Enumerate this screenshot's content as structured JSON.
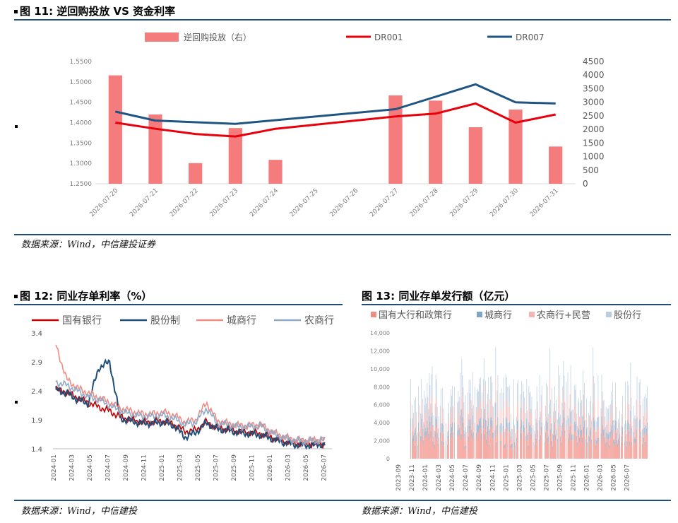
{
  "fig11": {
    "title": "图 11: 逆回购投放 VS 资金利率",
    "source": "数据来源：Wind，中信建投证券"
  },
  "fig12": {
    "title": "图 12: 同业存单利率（%）",
    "source": "数据来源：Wind，中信建投"
  },
  "fig13": {
    "title": "图 13: 同业存单发行额（亿元）",
    "source": "数据来源：Wind，中信建投"
  },
  "chart_data": [
    {
      "id": "fig11",
      "type": "bar",
      "categories": [
        "2026-07-20",
        "2026-07-21",
        "2026-07-22",
        "2026-07-23",
        "2026-07-24",
        "2026-07-25",
        "2026-07-26",
        "2026-07-27",
        "2026-07-28",
        "2026-07-29",
        "2026-07-30",
        "2026-07-31"
      ],
      "series": [
        {
          "name": "逆回购投放（右）",
          "kind": "bar",
          "axis": "right",
          "color": "#f47c7c",
          "values": [
            3990,
            2550,
            760,
            2050,
            880,
            null,
            null,
            3250,
            3060,
            2080,
            2730,
            1370
          ]
        },
        {
          "name": "DR001",
          "kind": "line",
          "axis": "left",
          "color": "#e8000b",
          "points": [
            [
              0,
              1.4
            ],
            " ",
            [
              1,
              1.385
            ],
            [
              2,
              1.372
            ],
            [
              3,
              1.366
            ],
            [
              4,
              1.385
            ],
            [
              7,
              1.415
            ],
            [
              8,
              1.422
            ],
            [
              9,
              1.447
            ],
            [
              10,
              1.4
            ],
            [
              11,
              1.42
            ]
          ]
        },
        {
          "name": "DR007",
          "kind": "line",
          "axis": "left",
          "color": "#1f5582",
          "points": [
            [
              0,
              1.427
            ],
            [
              1,
              1.405
            ],
            [
              3,
              1.397
            ],
            [
              7,
              1.433
            ],
            [
              9,
              1.494
            ],
            [
              10,
              1.45
            ],
            [
              11,
              1.447
            ]
          ]
        }
      ],
      "y_left": {
        "ticks": [
          "1.2500",
          "1.3000",
          "1.3500",
          "1.4000",
          "1.4500",
          "1.5000",
          "1.5500"
        ],
        "ylim": [
          1.25,
          1.55
        ]
      },
      "y_right": {
        "ticks": [
          "0",
          "500",
          "1000",
          "1500",
          "2000",
          "2500",
          "3000",
          "3500",
          "4000",
          "4500"
        ],
        "ylim": [
          0,
          4500
        ]
      },
      "legend": "top"
    },
    {
      "id": "fig12",
      "type": "line",
      "x_ticks": [
        "2024-01",
        "2024-03",
        "2024-05",
        "2024-07",
        "2024-09",
        "2024-11",
        "2025-01",
        "2025-03",
        "2025-05",
        "2025-07",
        "2025-09",
        "2025-11",
        "2026-01",
        "2026-03",
        "2026-05",
        "2026-07"
      ],
      "y_ticks": [
        "1.4",
        "1.9",
        "2.4",
        "2.9",
        "3.4"
      ],
      "ylim": [
        1.4,
        3.4
      ],
      "series": [
        {
          "name": "国有银行",
          "color": "#c00000",
          "values": [
            2.42,
            2.38,
            2.28,
            2.2,
            2.12,
            2.05,
            1.95,
            1.9,
            1.86,
            1.86,
            1.88,
            1.82,
            1.7,
            1.72,
            1.86,
            1.76,
            1.74,
            1.7,
            1.68,
            1.66,
            1.6,
            1.54,
            1.5,
            1.48,
            1.48,
            1.49
          ]
        },
        {
          "name": "股份制",
          "color": "#1f4e79",
          "values": [
            2.42,
            2.36,
            2.25,
            2.18,
            2.8,
            2.9,
            1.92,
            1.88,
            1.84,
            1.84,
            1.86,
            1.8,
            1.6,
            1.68,
            1.85,
            1.74,
            1.72,
            1.68,
            1.66,
            1.64,
            1.58,
            1.52,
            1.48,
            1.46,
            1.47,
            1.48
          ]
        },
        {
          "name": "城商行",
          "color": "#f28b82",
          "values": [
            3.2,
            2.6,
            2.45,
            2.36,
            2.28,
            2.2,
            2.1,
            2.05,
            2.0,
            2.0,
            2.03,
            1.98,
            1.86,
            1.9,
            2.2,
            1.88,
            1.84,
            1.8,
            1.8,
            1.82,
            1.7,
            1.62,
            1.56,
            1.54,
            1.55,
            1.57
          ]
        },
        {
          "name": "农商行",
          "color": "#8faac6",
          "values": [
            2.55,
            2.5,
            2.4,
            2.3,
            2.25,
            2.15,
            2.05,
            2.0,
            1.96,
            1.96,
            1.98,
            1.92,
            1.82,
            1.86,
            2.1,
            1.84,
            1.82,
            1.78,
            1.78,
            1.8,
            1.68,
            1.6,
            1.55,
            1.53,
            1.54,
            1.55
          ]
        }
      ],
      "legend": "top"
    },
    {
      "id": "fig13",
      "type": "bar",
      "stacked": true,
      "x_ticks": [
        "2023-09",
        "2023-11",
        "2024-01",
        "2024-03",
        "2024-05",
        "2024-07",
        "2024-09",
        "2024-11",
        "2025-01",
        "2025-03",
        "2025-05",
        "2025-07",
        "2025-09",
        "2025-11",
        "2026-01",
        "2026-03",
        "2026-05",
        "2026-07"
      ],
      "y_ticks": [
        "0",
        "2,000",
        "4,000",
        "6,000",
        "8,000",
        "10,000",
        "12,000",
        "14,000"
      ],
      "ylim": [
        0,
        14000
      ],
      "series": [
        {
          "name": "国有大行和政策行",
          "color": "#f28b82"
        },
        {
          "name": "城商行",
          "color": "#7fa6c8"
        },
        {
          "name": "农商行+民营",
          "color": "#f7b4b0"
        },
        {
          "name": "股份行",
          "color": "#b9cde0"
        }
      ],
      "legend": "top"
    }
  ]
}
